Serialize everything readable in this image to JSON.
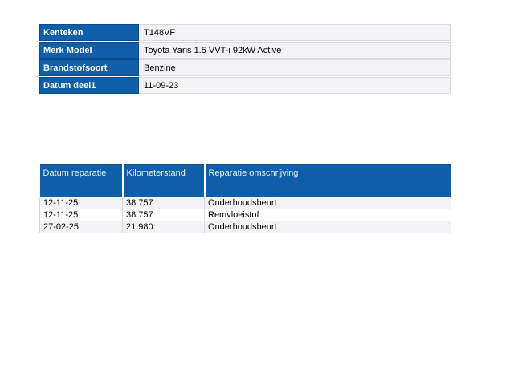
{
  "colors": {
    "header_blue": "#0F5EA9",
    "header_blue_border": "#0A4A8F",
    "row_alt_gray": "#F3F3F5",
    "row_white": "#FFFFFF",
    "cell_border_gray": "#D9D9DB",
    "label_text": "#FFFFFF",
    "header_text": "#E9F2FB"
  },
  "vehicle_info": {
    "rows": [
      {
        "label": "Kenteken",
        "value": "T148VF"
      },
      {
        "label": "Merk Model",
        "value": "Toyota Yaris 1.5 VVT-i 92kW Active"
      },
      {
        "label": "Brandstofsoort",
        "value": "Benzine"
      },
      {
        "label": "Datum deel1",
        "value": "11-09-23"
      }
    ]
  },
  "repair_history": {
    "columns": [
      "Datum reparatie",
      "Kilometerstand",
      "Reparatie omschrijving"
    ],
    "rows": [
      [
        "12-11-25",
        "38.757",
        "Onderhoudsbeurt"
      ],
      [
        "12-11-25",
        "38.757",
        "Remvloeistof"
      ],
      [
        "27-02-25",
        "21.980",
        "Onderhoudsbeurt"
      ]
    ]
  }
}
